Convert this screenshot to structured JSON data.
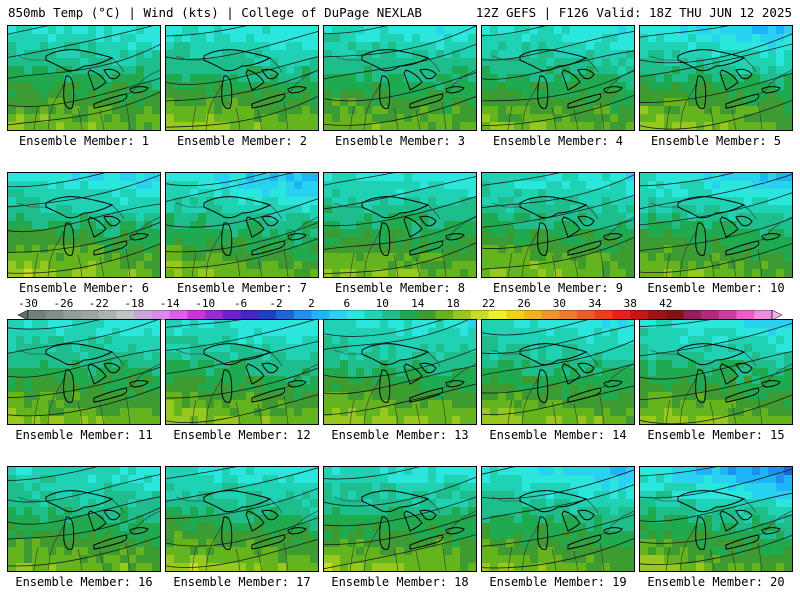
{
  "header": {
    "left": "850mb Temp (°C) | Wind (kts) | College of DuPage NEXLAB",
    "right": "12Z GEFS | F126 Valid: 18Z THU JUN 12 2025"
  },
  "panels": [
    {
      "label": "Ensemble Member: 1",
      "warmth": 0.55,
      "cold": 0.15
    },
    {
      "label": "Ensemble Member: 2",
      "warmth": 0.7,
      "cold": 0.25
    },
    {
      "label": "Ensemble Member: 3",
      "warmth": 0.45,
      "cold": 0.2
    },
    {
      "label": "Ensemble Member: 4",
      "warmth": 0.5,
      "cold": 0.2
    },
    {
      "label": "Ensemble Member: 5",
      "warmth": 0.65,
      "cold": 0.45
    },
    {
      "label": "Ensemble Member: 6",
      "warmth": 0.8,
      "cold": 0.35
    },
    {
      "label": "Ensemble Member: 7",
      "warmth": 0.55,
      "cold": 0.55
    },
    {
      "label": "Ensemble Member: 8",
      "warmth": 0.55,
      "cold": 0.2
    },
    {
      "label": "Ensemble Member: 9",
      "warmth": 0.55,
      "cold": 0.2
    },
    {
      "label": "Ensemble Member: 10",
      "warmth": 0.45,
      "cold": 0.45
    },
    {
      "label": "Ensemble Member: 11",
      "warmth": 0.55,
      "cold": 0.15
    },
    {
      "label": "Ensemble Member: 12",
      "warmth": 0.65,
      "cold": 0.25
    },
    {
      "label": "Ensemble Member: 13",
      "warmth": 0.7,
      "cold": 0.2
    },
    {
      "label": "Ensemble Member: 14",
      "warmth": 0.6,
      "cold": 0.25
    },
    {
      "label": "Ensemble Member: 15",
      "warmth": 0.65,
      "cold": 0.3
    },
    {
      "label": "Ensemble Member: 16",
      "warmth": 0.5,
      "cold": 0.15
    },
    {
      "label": "Ensemble Member: 17",
      "warmth": 0.75,
      "cold": 0.2
    },
    {
      "label": "Ensemble Member: 18",
      "warmth": 0.65,
      "cold": 0.15
    },
    {
      "label": "Ensemble Member: 19",
      "warmth": 0.5,
      "cold": 0.5
    },
    {
      "label": "Ensemble Member: 20",
      "warmth": 0.6,
      "cold": 0.75
    }
  ],
  "colorbar": {
    "labels": [
      "-30",
      "-26",
      "-22",
      "-18",
      "-14",
      "-10",
      "-6",
      "-2",
      "2",
      "6",
      "10",
      "14",
      "18",
      "22",
      "26",
      "30",
      "34",
      "38",
      "42"
    ],
    "colors": [
      "#5d6e66",
      "#6e8078",
      "#7e9088",
      "#8fa098",
      "#9aa6a6",
      "#aab4b4",
      "#bcc4c4",
      "#cba3dd",
      "#d78be6",
      "#e05fe8",
      "#cc33dd",
      "#9a2ad8",
      "#6a1fd0",
      "#4624c8",
      "#1e40c8",
      "#1e64dc",
      "#1e90f0",
      "#1eb4f8",
      "#28d2f0",
      "#2ae6dc",
      "#20d2b4",
      "#1ebe8c",
      "#20aa50",
      "#3c9c32",
      "#64b41e",
      "#96c81e",
      "#c8dc28",
      "#f0f028",
      "#f0d21e",
      "#f0b41e",
      "#f09628",
      "#f07828",
      "#f05a28",
      "#f03c1e",
      "#e61e1e",
      "#c81414",
      "#a01414",
      "#821414",
      "#961e5a",
      "#b4287d",
      "#d23ca0",
      "#f05ac8",
      "#f08cdc",
      "#f0b4e6"
    ]
  }
}
